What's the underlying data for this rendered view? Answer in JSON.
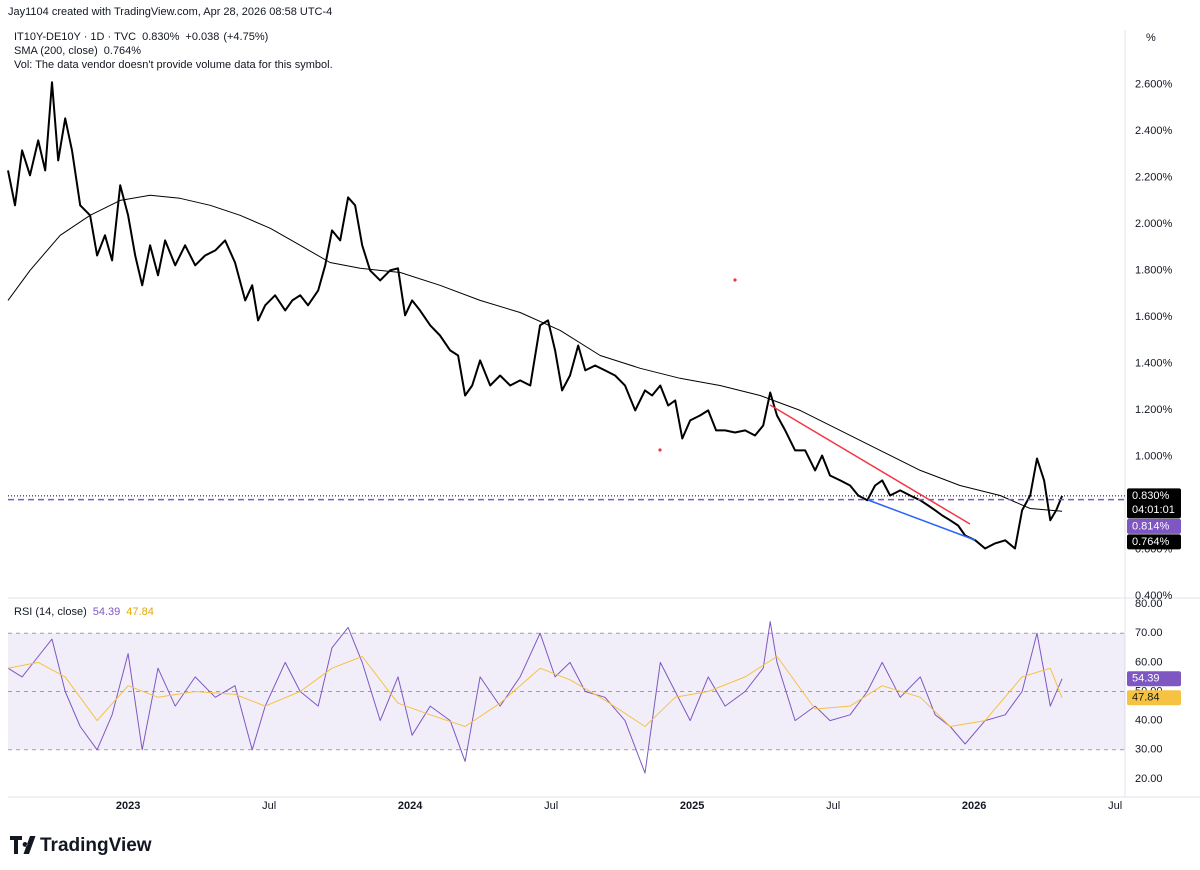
{
  "header": {
    "attribution": "Jay1104 created with TradingView.com, Apr 28, 2026 08:58 UTC-4",
    "change": "+0.038",
    "change_pct": "(+4.75%)",
    "volume_note": "Vol: The data vendor doesn't provide volume data for this symbol."
  },
  "chart_data": [
    {
      "type": "line",
      "unit": "%",
      "xlim": [
        2022.574,
        2026.535
      ],
      "ylim": [
        0.391,
        2.834
      ],
      "yticks": [
        {
          "value": 0.4,
          "label": "0.400%"
        },
        {
          "value": 0.6,
          "label": "0.600%"
        },
        {
          "value": 0.8,
          "label": "0.800%"
        },
        {
          "value": 1.0,
          "label": "1.000%"
        },
        {
          "value": 1.2,
          "label": "1.200%"
        },
        {
          "value": 1.4,
          "label": "1.400%"
        },
        {
          "value": 1.6,
          "label": "1.600%"
        },
        {
          "value": 1.8,
          "label": "1.800%"
        },
        {
          "value": 2.0,
          "label": "2.000%"
        },
        {
          "value": 2.2,
          "label": "2.200%"
        },
        {
          "value": 2.4,
          "label": "2.400%"
        },
        {
          "value": 2.6,
          "label": "2.600%"
        }
      ],
      "series": [
        {
          "name": "IT10Y-DE10Y · 1D · TVC",
          "color": "#000000",
          "line_width": 2,
          "x": [
            2022.574,
            2022.599,
            2022.624,
            2022.652,
            2022.681,
            2022.706,
            2022.73,
            2022.752,
            2022.777,
            2022.801,
            2022.83,
            2022.865,
            2022.89,
            2022.918,
            2022.943,
            2022.972,
            2023.0,
            2023.025,
            2023.05,
            2023.078,
            2023.106,
            2023.131,
            2023.167,
            2023.202,
            2023.238,
            2023.273,
            2023.309,
            2023.344,
            2023.379,
            2023.415,
            2023.44,
            2023.461,
            2023.486,
            2023.521,
            2023.557,
            2023.582,
            2023.61,
            2023.638,
            2023.674,
            2023.699,
            2023.723,
            2023.752,
            2023.78,
            2023.805,
            2023.83,
            2023.858,
            2023.894,
            2023.929,
            2023.957,
            2023.982,
            2024.007,
            2024.035,
            2024.071,
            2024.106,
            2024.142,
            2024.17,
            2024.195,
            2024.22,
            2024.248,
            2024.284,
            2024.319,
            2024.355,
            2024.39,
            2024.426,
            2024.461,
            2024.489,
            2024.514,
            2024.539,
            2024.567,
            2024.596,
            2024.621,
            2024.656,
            2024.691,
            2024.727,
            2024.762,
            2024.798,
            2024.833,
            2024.858,
            2024.887,
            2024.915,
            2024.94,
            2024.965,
            2024.993,
            2025.028,
            2025.057,
            2025.085,
            2025.117,
            2025.152,
            2025.188,
            2025.223,
            2025.252,
            2025.277,
            2025.301,
            2025.33,
            2025.365,
            2025.401,
            2025.436,
            2025.461,
            2025.489,
            2025.525,
            2025.56,
            2025.589,
            2025.621,
            2025.649,
            2025.674,
            2025.702,
            2025.738,
            2025.773,
            2025.809,
            2025.837,
            2025.862,
            2025.887,
            2025.915,
            2025.943,
            2025.968,
            2026.004,
            2026.039,
            2026.074,
            2026.11,
            2026.145,
            2026.17,
            2026.199,
            2026.223,
            2026.248,
            2026.27,
            2026.291,
            2026.312
          ],
          "values": [
            2.23,
            2.08,
            2.316,
            2.209,
            2.359,
            2.23,
            2.609,
            2.273,
            2.454,
            2.316,
            2.08,
            2.037,
            1.864,
            1.951,
            1.843,
            2.166,
            2.037,
            1.864,
            1.736,
            1.908,
            1.779,
            1.929,
            1.822,
            1.908,
            1.822,
            1.864,
            1.886,
            1.929,
            1.834,
            1.671,
            1.736,
            1.585,
            1.65,
            1.693,
            1.628,
            1.671,
            1.693,
            1.65,
            1.714,
            1.822,
            1.972,
            1.929,
            2.114,
            2.08,
            1.908,
            1.8,
            1.757,
            1.8,
            1.809,
            1.607,
            1.671,
            1.628,
            1.564,
            1.52,
            1.456,
            1.434,
            1.262,
            1.305,
            1.413,
            1.305,
            1.348,
            1.305,
            1.327,
            1.305,
            1.564,
            1.585,
            1.456,
            1.284,
            1.348,
            1.477,
            1.37,
            1.391,
            1.37,
            1.348,
            1.305,
            1.198,
            1.284,
            1.262,
            1.305,
            1.219,
            1.241,
            1.077,
            1.155,
            1.176,
            1.198,
            1.112,
            1.112,
            1.103,
            1.112,
            1.09,
            1.133,
            1.275,
            1.176,
            1.112,
            1.026,
            1.026,
            0.94,
            1.004,
            0.918,
            0.897,
            0.875,
            0.832,
            0.811,
            0.875,
            0.897,
            0.832,
            0.854,
            0.832,
            0.811,
            0.789,
            0.768,
            0.746,
            0.725,
            0.703,
            0.66,
            0.639,
            0.604,
            0.626,
            0.639,
            0.604,
            0.768,
            0.832,
            0.991,
            0.897,
            0.725,
            0.768,
            0.83
          ]
        },
        {
          "name": "SMA (200, close)",
          "color": "#000000",
          "line_width": 1,
          "x": [
            2022.574,
            2022.652,
            2022.759,
            2022.865,
            2022.972,
            2023.078,
            2023.184,
            2023.291,
            2023.397,
            2023.504,
            2023.61,
            2023.716,
            2023.823,
            2023.965,
            2024.106,
            2024.248,
            2024.39,
            2024.532,
            2024.674,
            2024.816,
            2024.957,
            2025.099,
            2025.241,
            2025.383,
            2025.525,
            2025.667,
            2025.809,
            2025.95,
            2026.092,
            2026.199,
            2026.312
          ],
          "values": [
            1.671,
            1.8,
            1.951,
            2.037,
            2.101,
            2.123,
            2.11,
            2.08,
            2.037,
            1.981,
            1.908,
            1.834,
            1.809,
            1.791,
            1.736,
            1.671,
            1.619,
            1.542,
            1.434,
            1.379,
            1.336,
            1.305,
            1.262,
            1.198,
            1.112,
            1.026,
            0.94,
            0.875,
            0.832,
            0.776,
            0.764
          ]
        }
      ],
      "price_tags": [
        {
          "value": 0.83,
          "label": "0.830%",
          "color": "#000000",
          "countdown": "04:01:01",
          "line": "dotted"
        },
        {
          "value": 0.814,
          "label": "0.814%",
          "color": "#7e57c2",
          "line": "dashed"
        },
        {
          "value": 0.764,
          "label": "0.764%",
          "color": "#000000"
        }
      ]
    },
    {
      "type": "line",
      "title": "RSI (14, close)",
      "xlim": [
        2022.574,
        2026.535
      ],
      "xticks": [
        {
          "value": 2023,
          "label": "2023"
        },
        {
          "value": 2023.5,
          "label": "Jul"
        },
        {
          "value": 2024,
          "label": "2024"
        },
        {
          "value": 2024.5,
          "label": "Jul"
        },
        {
          "value": 2025,
          "label": "2025"
        },
        {
          "value": 2025.5,
          "label": "Jul"
        },
        {
          "value": 2026,
          "label": "2026"
        },
        {
          "value": 2026.5,
          "label": "Jul"
        }
      ],
      "ylim": [
        13.8,
        81.4
      ],
      "yticks": [
        {
          "value": 20,
          "label": "20.00"
        },
        {
          "value": 30,
          "label": "30.00"
        },
        {
          "value": 40,
          "label": "40.00"
        },
        {
          "value": 50,
          "label": "50.00"
        },
        {
          "value": 60,
          "label": "60.00"
        },
        {
          "value": 70,
          "label": "70.00"
        },
        {
          "value": 80,
          "label": "80.00"
        }
      ],
      "band": [
        30,
        70
      ],
      "levels": [
        70,
        50,
        30
      ],
      "series": [
        {
          "color": "#7e57c2",
          "line_width": 1,
          "x": [
            2022.574,
            2022.624,
            2022.681,
            2022.73,
            2022.777,
            2022.83,
            2022.89,
            2022.943,
            2023.0,
            2023.05,
            2023.106,
            2023.167,
            2023.238,
            2023.309,
            2023.379,
            2023.44,
            2023.486,
            2023.557,
            2023.61,
            2023.674,
            2023.723,
            2023.78,
            2023.83,
            2023.894,
            2023.957,
            2024.007,
            2024.071,
            2024.142,
            2024.195,
            2024.248,
            2024.319,
            2024.39,
            2024.461,
            2024.514,
            2024.567,
            2024.621,
            2024.691,
            2024.762,
            2024.833,
            2024.887,
            2024.94,
            2024.993,
            2025.057,
            2025.117,
            2025.188,
            2025.252,
            2025.277,
            2025.301,
            2025.365,
            2025.436,
            2025.489,
            2025.56,
            2025.621,
            2025.674,
            2025.738,
            2025.809,
            2025.862,
            2025.915,
            2025.968,
            2026.039,
            2026.11,
            2026.17,
            2026.223,
            2026.27,
            2026.312
          ],
          "values": [
            58,
            55,
            62,
            68,
            50,
            38,
            30,
            42,
            63,
            30,
            58,
            45,
            55,
            48,
            52,
            30,
            45,
            60,
            50,
            45,
            65,
            72,
            60,
            40,
            55,
            35,
            45,
            40,
            26,
            55,
            45,
            55,
            70,
            55,
            60,
            50,
            48,
            40,
            22,
            60,
            50,
            40,
            55,
            45,
            50,
            58,
            74,
            60,
            40,
            45,
            40,
            42,
            50,
            60,
            48,
            55,
            42,
            38,
            32,
            40,
            42,
            50,
            70,
            45,
            54.39
          ]
        },
        {
          "color": "#f5c242",
          "line_width": 1,
          "x": [
            2022.574,
            2022.681,
            2022.777,
            2022.89,
            2023.0,
            2023.106,
            2023.238,
            2023.379,
            2023.486,
            2023.61,
            2023.723,
            2023.83,
            2023.957,
            2024.071,
            2024.195,
            2024.319,
            2024.461,
            2024.567,
            2024.691,
            2024.833,
            2024.94,
            2025.057,
            2025.188,
            2025.301,
            2025.436,
            2025.56,
            2025.674,
            2025.809,
            2025.915,
            2026.039,
            2026.17,
            2026.27,
            2026.312
          ],
          "values": [
            58,
            60,
            55,
            40,
            52,
            48,
            50,
            49,
            45,
            50,
            58,
            62,
            46,
            42,
            38,
            46,
            58,
            54,
            47,
            38,
            48,
            50,
            55,
            62,
            44,
            45,
            52,
            48,
            38,
            40,
            55,
            58,
            47.84
          ]
        }
      ],
      "tags": [
        {
          "value": 54.39,
          "color": "#7e57c2"
        },
        {
          "value": 47.84,
          "color": "#f5c242"
        }
      ]
    }
  ],
  "footer": {
    "logo": "TradingView"
  }
}
